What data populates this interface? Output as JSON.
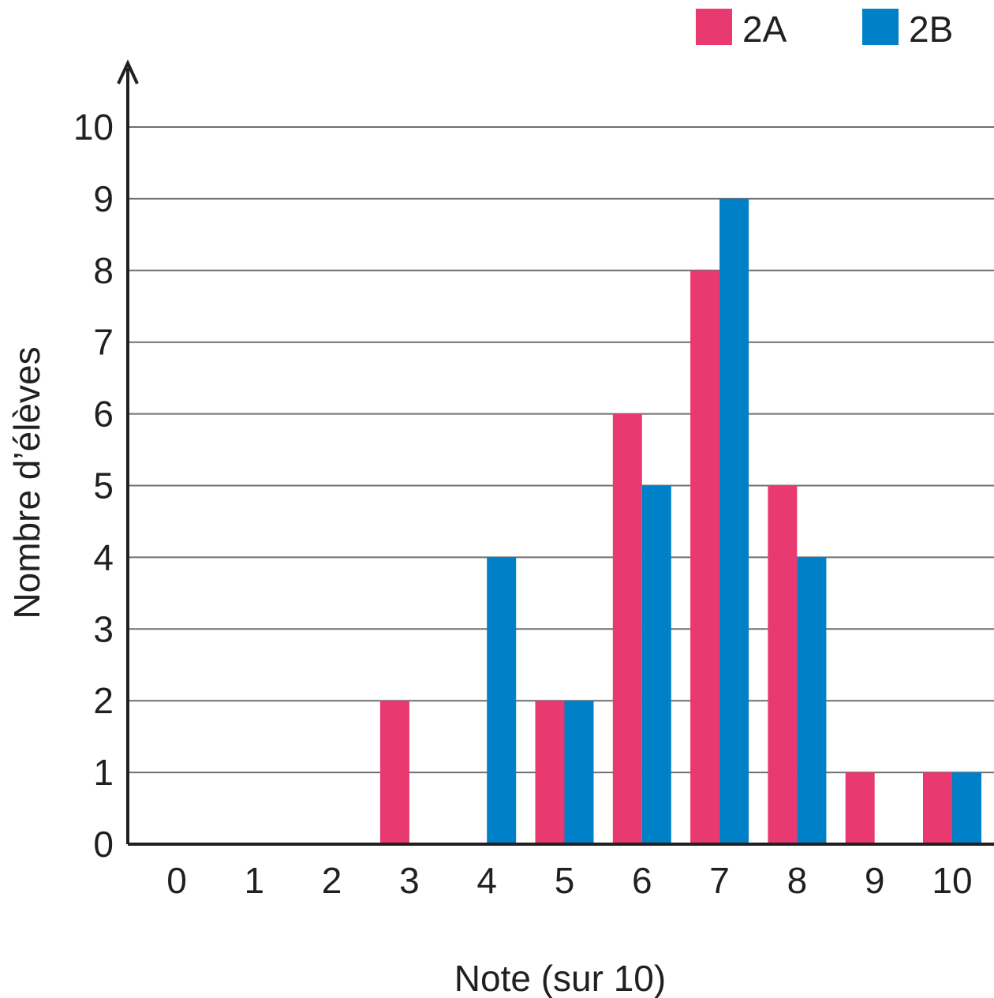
{
  "chart_data": {
    "type": "bar",
    "xlabel": "Note (sur 10)",
    "ylabel": "Nombre d’élèves",
    "categories": [
      "0",
      "1",
      "2",
      "3",
      "4",
      "5",
      "6",
      "7",
      "8",
      "9",
      "10"
    ],
    "series": [
      {
        "name": "2A",
        "color": "#e83a70",
        "values": [
          0,
          0,
          0,
          2,
          0,
          2,
          6,
          8,
          5,
          1,
          1
        ]
      },
      {
        "name": "2B",
        "color": "#0080c6",
        "values": [
          0,
          0,
          0,
          0,
          4,
          2,
          5,
          9,
          4,
          0,
          1
        ]
      }
    ],
    "ylim": [
      0,
      10
    ],
    "yticks": [
      "0",
      "1",
      "2",
      "3",
      "4",
      "5",
      "6",
      "7",
      "8",
      "9",
      "10"
    ],
    "grid": true,
    "legend_position": "top-right"
  }
}
